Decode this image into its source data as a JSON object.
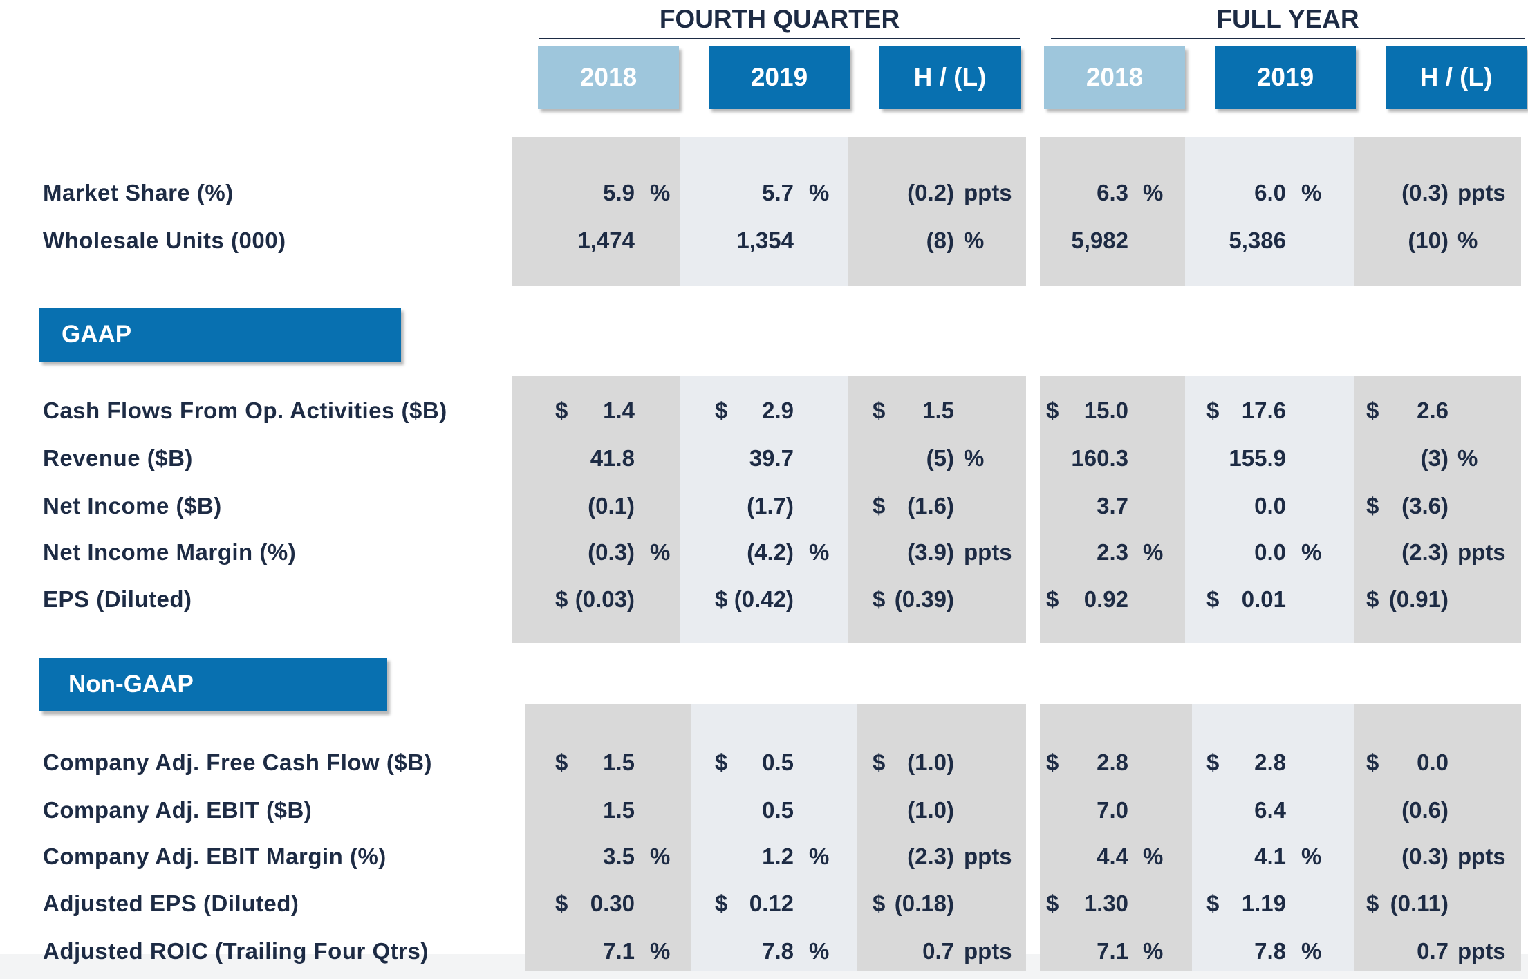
{
  "groups": {
    "q4": "FOURTH QUARTER",
    "fy": "FULL YEAR"
  },
  "headers": {
    "q4_2018": "2018",
    "q4_2019": "2019",
    "q4_hl": "H / (L)",
    "fy_2018": "2018",
    "fy_2019": "2019",
    "fy_hl": "H / (L)"
  },
  "sections": {
    "gaap": "GAAP",
    "non_gaap": "Non-GAAP"
  },
  "rows": [
    {
      "label": "Market Share (%)",
      "q4_2018": [
        "",
        "5.9",
        "%"
      ],
      "q4_2019": [
        "",
        "5.7",
        "%"
      ],
      "q4_hl": [
        "",
        "(0.2)",
        "ppts"
      ],
      "fy_2018": [
        "",
        "6.3",
        "%"
      ],
      "fy_2019": [
        "",
        "6.0",
        "%"
      ],
      "fy_hl": [
        "",
        "(0.3)",
        "ppts"
      ]
    },
    {
      "label": "Wholesale Units (000)",
      "q4_2018": [
        "",
        "1,474",
        ""
      ],
      "q4_2019": [
        "",
        "1,354",
        ""
      ],
      "q4_hl": [
        "",
        "(8)",
        "%"
      ],
      "fy_2018": [
        "",
        "5,982",
        ""
      ],
      "fy_2019": [
        "",
        "5,386",
        ""
      ],
      "fy_hl": [
        "",
        "(10)",
        "%"
      ]
    },
    {
      "label": "Cash Flows From Op. Activities ($B)",
      "q4_2018": [
        "$",
        "1.4",
        ""
      ],
      "q4_2019": [
        "$",
        "2.9",
        ""
      ],
      "q4_hl": [
        "$",
        "1.5",
        ""
      ],
      "fy_2018": [
        "$",
        "15.0",
        ""
      ],
      "fy_2019": [
        "$",
        "17.6",
        ""
      ],
      "fy_hl": [
        "$",
        "2.6",
        ""
      ]
    },
    {
      "label": "Revenue ($B)",
      "q4_2018": [
        "",
        "41.8",
        ""
      ],
      "q4_2019": [
        "",
        "39.7",
        ""
      ],
      "q4_hl": [
        "",
        "(5)",
        "%"
      ],
      "fy_2018": [
        "",
        "160.3",
        ""
      ],
      "fy_2019": [
        "",
        "155.9",
        ""
      ],
      "fy_hl": [
        "",
        "(3)",
        "%"
      ]
    },
    {
      "label": "Net Income ($B)",
      "q4_2018": [
        "",
        "(0.1)",
        ""
      ],
      "q4_2019": [
        "",
        "(1.7)",
        ""
      ],
      "q4_hl": [
        "$",
        "(1.6)",
        ""
      ],
      "fy_2018": [
        "",
        "3.7",
        ""
      ],
      "fy_2019": [
        "",
        "0.0",
        ""
      ],
      "fy_hl": [
        "$",
        "(3.6)",
        ""
      ]
    },
    {
      "label": "Net Income Margin (%)",
      "q4_2018": [
        "",
        "(0.3)",
        "%"
      ],
      "q4_2019": [
        "",
        "(4.2)",
        "%"
      ],
      "q4_hl": [
        "",
        "(3.9)",
        "ppts"
      ],
      "fy_2018": [
        "",
        "2.3",
        "%"
      ],
      "fy_2019": [
        "",
        "0.0",
        "%"
      ],
      "fy_hl": [
        "",
        "(2.3)",
        "ppts"
      ]
    },
    {
      "label": "EPS (Diluted)",
      "q4_2018": [
        "$",
        "(0.03)",
        ""
      ],
      "q4_2019": [
        "$",
        "(0.42)",
        ""
      ],
      "q4_hl": [
        "$",
        "(0.39)",
        ""
      ],
      "fy_2018": [
        "$",
        "0.92",
        ""
      ],
      "fy_2019": [
        "$",
        "0.01",
        ""
      ],
      "fy_hl": [
        "$",
        "(0.91)",
        ""
      ]
    },
    {
      "label": "Company Adj. Free Cash Flow ($B)",
      "q4_2018": [
        "$",
        "1.5",
        ""
      ],
      "q4_2019": [
        "$",
        "0.5",
        ""
      ],
      "q4_hl": [
        "$",
        "(1.0)",
        ""
      ],
      "fy_2018": [
        "$",
        "2.8",
        ""
      ],
      "fy_2019": [
        "$",
        "2.8",
        ""
      ],
      "fy_hl": [
        "$",
        "0.0",
        ""
      ]
    },
    {
      "label": "Company Adj. EBIT ($B)",
      "q4_2018": [
        "",
        "1.5",
        ""
      ],
      "q4_2019": [
        "",
        "0.5",
        ""
      ],
      "q4_hl": [
        "",
        "(1.0)",
        ""
      ],
      "fy_2018": [
        "",
        "7.0",
        ""
      ],
      "fy_2019": [
        "",
        "6.4",
        ""
      ],
      "fy_hl": [
        "",
        "(0.6)",
        ""
      ]
    },
    {
      "label": "Company Adj. EBIT Margin (%)",
      "q4_2018": [
        "",
        "3.5",
        "%"
      ],
      "q4_2019": [
        "",
        "1.2",
        "%"
      ],
      "q4_hl": [
        "",
        "(2.3)",
        "ppts"
      ],
      "fy_2018": [
        "",
        "4.4",
        "%"
      ],
      "fy_2019": [
        "",
        "4.1",
        "%"
      ],
      "fy_hl": [
        "",
        "(0.3)",
        "ppts"
      ]
    },
    {
      "label": "Adjusted EPS (Diluted)",
      "q4_2018": [
        "$",
        "0.30",
        ""
      ],
      "q4_2019": [
        "$",
        "0.12",
        ""
      ],
      "q4_hl": [
        "$",
        "(0.18)",
        ""
      ],
      "fy_2018": [
        "$",
        "1.30",
        ""
      ],
      "fy_2019": [
        "$",
        "1.19",
        ""
      ],
      "fy_hl": [
        "$",
        "(0.11)",
        ""
      ]
    },
    {
      "label": "Adjusted ROIC (Trailing Four Qtrs)",
      "q4_2018": [
        "",
        "7.1",
        "%"
      ],
      "q4_2019": [
        "",
        "7.8",
        "%"
      ],
      "q4_hl": [
        "",
        "0.7",
        "ppts"
      ],
      "fy_2018": [
        "",
        "7.1",
        "%"
      ],
      "fy_2019": [
        "",
        "7.8",
        "%"
      ],
      "fy_hl": [
        "",
        "0.7",
        "ppts"
      ]
    }
  ]
}
